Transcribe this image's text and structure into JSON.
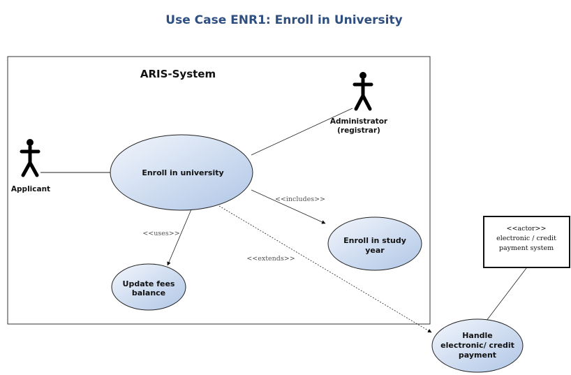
{
  "title": "Use Case ENR1: Enroll in University",
  "system": {
    "name": "ARIS-System"
  },
  "actors": {
    "applicant": "Applicant",
    "administrator_line1": "Administrator",
    "administrator_line2": "(registrar)"
  },
  "use_cases": {
    "enroll_university": "Enroll in university",
    "enroll_study_year_line1": "Enroll in study",
    "enroll_study_year_line2": "year",
    "update_fees_line1": "Update fees",
    "update_fees_line2": "balance",
    "handle_payment_line1": "Handle",
    "handle_payment_line2": "electronic/ credit",
    "handle_payment_line3": "payment"
  },
  "relations": {
    "includes": "<<includes>>",
    "uses": "<<uses>>",
    "extends": "<<extends>>"
  },
  "external_system": {
    "stereotype": "<<actor>>",
    "line1": "electronic / credit",
    "line2": "payment system"
  },
  "colors": {
    "title": "#2f4f80",
    "ellipse_light": "#eef4fb",
    "ellipse_dark": "#b3c9e8",
    "ellipse_stroke": "#222222"
  }
}
